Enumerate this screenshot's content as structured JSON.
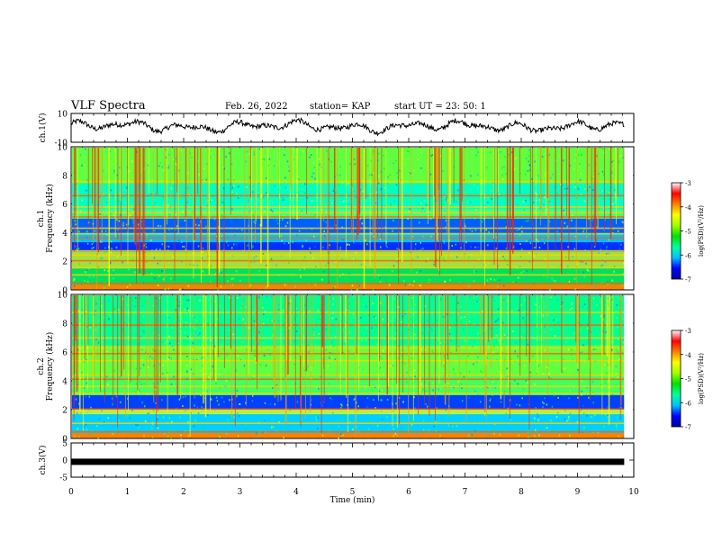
{
  "header": {
    "title": "VLF Spectra",
    "date": "Feb. 26, 2022",
    "station": "station= KAP",
    "start": "start  UT  =   23: 50: 1"
  },
  "chart_data": [
    {
      "type": "line",
      "panel": "ch1-waveform",
      "ylabel": "ch.1(V)",
      "ylim": [
        -10,
        10
      ],
      "yticks": [
        "10",
        "-10"
      ],
      "xlim": [
        0,
        10
      ],
      "series_color": "#000000",
      "note_values": "noisy waveform roughly between -6 and 8 V over 0-9.83 min"
    },
    {
      "type": "heatmap",
      "panel": "ch1-spectrogram",
      "ylabel": "ch.1\nFrequency (kHz)",
      "ylim": [
        0,
        10
      ],
      "yticks": [
        "0",
        "2",
        "4",
        "6",
        "8",
        "10"
      ],
      "xlim": [
        0,
        10
      ],
      "data_end_min": 9.83,
      "colorbar": {
        "label": "log(PSD)(V²/Hz)",
        "range": [
          -7,
          -3
        ],
        "ticks": [
          "-3",
          "-4",
          "-5",
          "-6",
          "-7"
        ],
        "colormap": [
          "#0000a0",
          "#0000ff",
          "#00c0ff",
          "#00ffa0",
          "#00e000",
          "#a0ff00",
          "#ffff00",
          "#ff8000",
          "#ff0000",
          "#ffffff"
        ]
      }
    },
    {
      "type": "heatmap",
      "panel": "ch2-spectrogram",
      "ylabel": "ch.2\nFrequency (kHz)",
      "ylim": [
        0,
        10
      ],
      "yticks": [
        "0",
        "2",
        "4",
        "6",
        "8",
        "10"
      ],
      "xlim": [
        0,
        10
      ],
      "data_end_min": 9.83,
      "colorbar": {
        "label": "log(PSD)(V²/Hz)",
        "range": [
          -7,
          -3
        ],
        "ticks": [
          "-3",
          "-4",
          "-5",
          "-6",
          "-7"
        ],
        "colormap": [
          "#0000a0",
          "#0000ff",
          "#00c0ff",
          "#00ffa0",
          "#00e000",
          "#a0ff00",
          "#ffff00",
          "#ff8000",
          "#ff0000",
          "#ffffff"
        ]
      }
    },
    {
      "type": "line",
      "panel": "ch3-waveform",
      "ylabel": "ch.3(V)",
      "ylim": [
        -5,
        5
      ],
      "yticks": [
        "5",
        "0",
        "-5"
      ],
      "xlim": [
        0,
        10
      ],
      "constant_value": -0.5,
      "series_color": "#000000"
    }
  ],
  "xaxis": {
    "label": "Time  (min)",
    "ticks": [
      "0",
      "1",
      "2",
      "3",
      "4",
      "5",
      "6",
      "7",
      "8",
      "9",
      "10"
    ]
  }
}
